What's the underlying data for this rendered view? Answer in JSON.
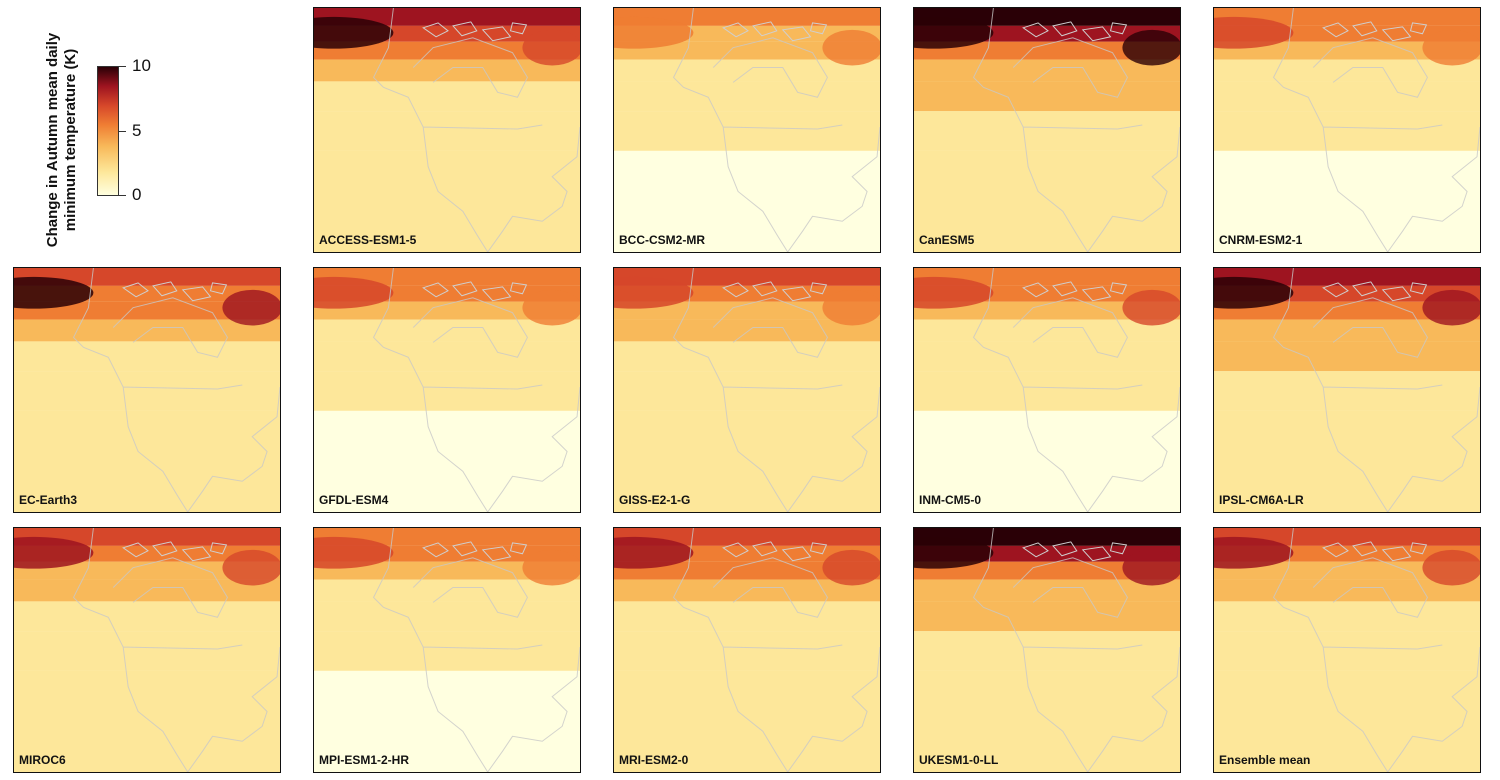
{
  "legend": {
    "title_line1": "Change in Autumn mean daily",
    "title_line2": "minimum temperature (K)",
    "ticks": [
      "10",
      "5",
      "0"
    ],
    "colors": [
      "#ffffe0",
      "#fde79a",
      "#f8b95a",
      "#ef7d33",
      "#d6472a",
      "#9e1420",
      "#2a0006"
    ]
  },
  "panels": [
    {
      "label": "ACCESS-ESM1-5",
      "arctic_intensity": 0.78,
      "west_intensity": 0.95,
      "east_intensity": 0.7
    },
    {
      "label": "BCC-CSM2-MR",
      "arctic_intensity": 0.5,
      "west_intensity": 0.55,
      "east_intensity": 0.55
    },
    {
      "label": "CanESM5",
      "arctic_intensity": 0.95,
      "west_intensity": 1.0,
      "east_intensity": 1.0
    },
    {
      "label": "CNRM-ESM2-1",
      "arctic_intensity": 0.55,
      "west_intensity": 0.6,
      "east_intensity": 0.5
    },
    {
      "label": "EC-Earth3",
      "arctic_intensity": 0.7,
      "west_intensity": 0.95,
      "east_intensity": 0.85
    },
    {
      "label": "GFDL-ESM4",
      "arctic_intensity": 0.55,
      "west_intensity": 0.65,
      "east_intensity": 0.5
    },
    {
      "label": "GISS-E2-1-G",
      "arctic_intensity": 0.65,
      "west_intensity": 0.7,
      "east_intensity": 0.55
    },
    {
      "label": "INM-CM5-0",
      "arctic_intensity": 0.55,
      "west_intensity": 0.6,
      "east_intensity": 0.65
    },
    {
      "label": "IPSL-CM6A-LR",
      "arctic_intensity": 0.85,
      "west_intensity": 1.0,
      "east_intensity": 0.8
    },
    {
      "label": "MIROC6",
      "arctic_intensity": 0.6,
      "west_intensity": 0.75,
      "east_intensity": 0.6
    },
    {
      "label": "MPI-ESM1-2-HR",
      "arctic_intensity": 0.55,
      "west_intensity": 0.65,
      "east_intensity": 0.45
    },
    {
      "label": "MRI-ESM2-0",
      "arctic_intensity": 0.7,
      "west_intensity": 0.9,
      "east_intensity": 0.6
    },
    {
      "label": "UKESM1-0-LL",
      "arctic_intensity": 0.95,
      "west_intensity": 1.0,
      "east_intensity": 0.9
    },
    {
      "label": "Ensemble mean",
      "arctic_intensity": 0.62,
      "west_intensity": 0.78,
      "east_intensity": 0.6
    }
  ]
}
